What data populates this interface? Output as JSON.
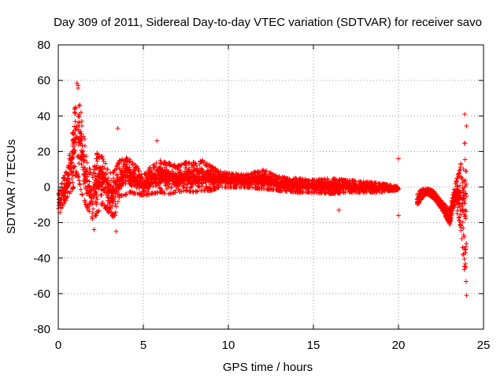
{
  "chart_data": {
    "type": "scatter",
    "title": "Day 309 of 2011, Sidereal Day-to-day VTEC variation (SDTVAR) for receiver savo",
    "xlabel": "GPS time / hours",
    "ylabel": "SDTVAR / TECUs",
    "xlim": [
      0,
      25
    ],
    "ylim": [
      -80,
      80
    ],
    "x_ticks": [
      0,
      5,
      10,
      15,
      20,
      25
    ],
    "y_ticks": [
      -80,
      -60,
      -40,
      -20,
      0,
      20,
      40,
      60,
      80
    ],
    "x_tick_labels": [
      "0",
      "5",
      "10",
      "15",
      "20",
      "25"
    ],
    "y_tick_labels": [
      "-80",
      "-60",
      "-40",
      "-20",
      "0",
      "20",
      "40",
      "60",
      "80"
    ],
    "grid": true,
    "marker": "+",
    "series": [
      {
        "name": "SDTVAR",
        "color": "#ff0000",
        "envelope": {
          "x": [
            0.0,
            0.3,
            0.6,
            0.9,
            1.05,
            1.2,
            1.4,
            1.7,
            2.0,
            2.3,
            2.6,
            3.0,
            3.3,
            3.6,
            3.9,
            4.2,
            4.6,
            5.0,
            5.5,
            6.0,
            6.5,
            7.0,
            7.5,
            8.0,
            8.5,
            9.0,
            9.5,
            10.0,
            11.0,
            12.0,
            13.0,
            14.0,
            15.0,
            16.0,
            17.0,
            18.0,
            19.0,
            19.5,
            20.0
          ],
          "high": [
            -5,
            5,
            12,
            40,
            63,
            58,
            40,
            15,
            5,
            20,
            18,
            8,
            10,
            15,
            17,
            16,
            12,
            7,
            12,
            15,
            14,
            12,
            14,
            14,
            15,
            12,
            9,
            8,
            7,
            10,
            6,
            5,
            4,
            5,
            4,
            3,
            2,
            1,
            0
          ],
          "low": [
            -18,
            -10,
            -5,
            0,
            10,
            5,
            -5,
            -12,
            -20,
            -15,
            -10,
            -15,
            -18,
            -5,
            -5,
            -3,
            -4,
            -5,
            -4,
            -3,
            -4,
            -3,
            -2,
            -3,
            -2,
            -2,
            0,
            0,
            0,
            -1,
            -2,
            -3,
            -3,
            -4,
            -3,
            -3,
            -3,
            -2,
            -2
          ]
        },
        "envelope2": {
          "x": [
            21.1,
            21.3,
            21.6,
            22.0,
            22.5,
            23.0,
            23.3,
            23.6,
            23.9,
            24.0
          ],
          "high": [
            -5,
            -2,
            -1,
            -2,
            -8,
            -15,
            0,
            10,
            25,
            40
          ],
          "low": [
            -12,
            -8,
            -4,
            -6,
            -12,
            -22,
            -10,
            -20,
            -50,
            -60
          ]
        },
        "outliers": [
          {
            "x": 3.5,
            "y": 33
          },
          {
            "x": 5.8,
            "y": 26
          },
          {
            "x": 20.0,
            "y": 16
          },
          {
            "x": 20.0,
            "y": -16
          },
          {
            "x": 23.9,
            "y": 41
          },
          {
            "x": 24.0,
            "y": -61
          },
          {
            "x": 23.95,
            "y": -37
          },
          {
            "x": 16.5,
            "y": -13
          },
          {
            "x": 2.1,
            "y": -24
          },
          {
            "x": 3.4,
            "y": -25
          }
        ]
      }
    ]
  }
}
